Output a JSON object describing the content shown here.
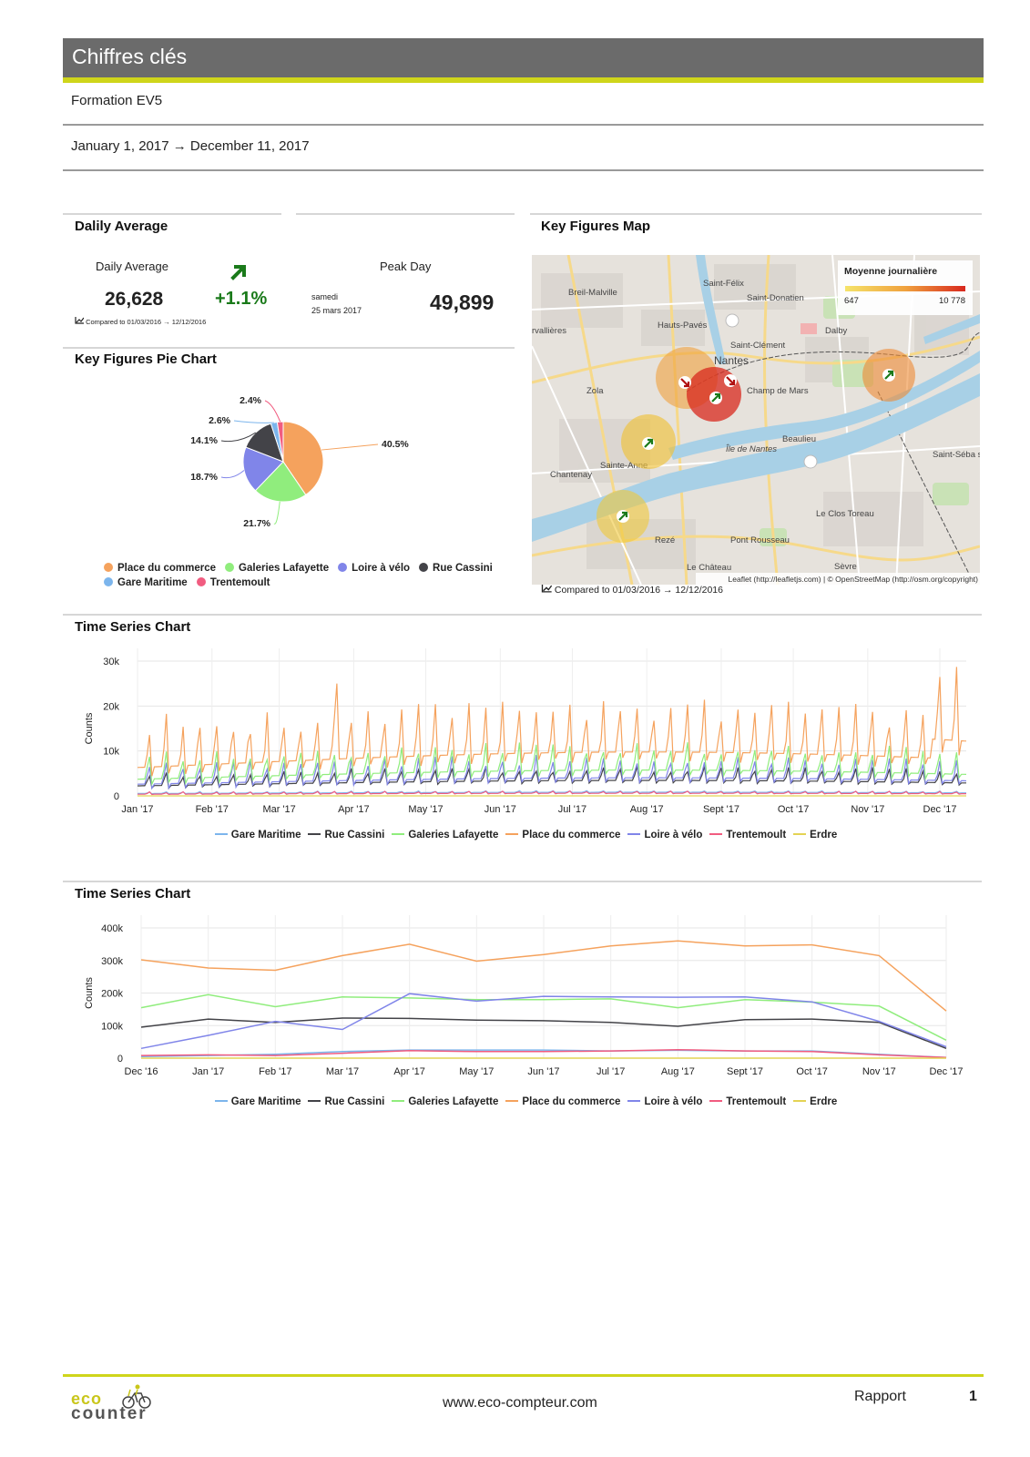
{
  "header": {
    "title": "Chiffres clés",
    "site": "Formation EV5",
    "date_range": "January 1, 2017 → December 11, 2017"
  },
  "daily_section": {
    "title": "Dalily Average"
  },
  "daily": {
    "label": "Daily Average",
    "value": "26,628",
    "change": "+1.1%",
    "compared": "Compared to  01/03/2016 → 12/12/2016"
  },
  "peak": {
    "label": "Peak Day",
    "day_name": "samedi",
    "date": "25 mars 2017",
    "value": "49,899"
  },
  "map": {
    "title": "Key Figures Map",
    "legend_title": "Moyenne journalière",
    "legend_min": "647",
    "legend_max": "10 778",
    "attribution": "Leaflet (http://leafletjs.com) | © OpenStreetMap (http://osm.org/copyright)",
    "compared": "Compared to  01/03/2016 → 12/12/2016",
    "place_labels": [
      "Saint-Félix",
      "Breil-Malville",
      "Saint-Donatien",
      "Hauts-Pavés",
      "Dalby",
      "rvallières",
      "Saint-Clément",
      "Nantes",
      "Champ de Mars",
      "Zola",
      "Beaulieu",
      "Île de Nantes",
      "Sainte-Anne",
      "Chantenay",
      "Saint-Séba sur-Loi",
      "Le Clos Toreau",
      "Rezé",
      "Pont Rousseau",
      "Le Château",
      "Sèvre"
    ]
  },
  "colors": {
    "place_du_commerce": "#f5a25d",
    "galeries_lafayette": "#90ed7d",
    "loire_a_velo": "#8085e9",
    "rue_cassini": "#434348",
    "gare_maritime": "#7cb5ec",
    "trentemoult": "#f15c80",
    "erdre": "#e4d354",
    "accent": "#cfd51b",
    "up_arrow": "#1a7a1a"
  },
  "pie_section": {
    "title": "Key Figures Pie Chart"
  },
  "ts1_section": {
    "title": "Time Series Chart"
  },
  "ts2_section": {
    "title": "Time Series Chart"
  },
  "chart_data": [
    {
      "type": "pie",
      "title": "Key Figures Pie Chart",
      "slices": [
        {
          "name": "Place du commerce",
          "value": 40.5,
          "label": "40.5%"
        },
        {
          "name": "Galeries Lafayette",
          "value": 21.7,
          "label": "21.7%"
        },
        {
          "name": "Loire à vélo",
          "value": 18.7,
          "label": "18.7%"
        },
        {
          "name": "Rue Cassini",
          "value": 14.1,
          "label": "14.1%"
        },
        {
          "name": "Gare Maritime",
          "value": 2.6,
          "label": "2.6%"
        },
        {
          "name": "Trentemoult",
          "value": 2.4,
          "label": "2.4%"
        }
      ]
    },
    {
      "type": "line",
      "title": "Time Series Chart",
      "ylabel": "Counts",
      "ylim": [
        0,
        30000
      ],
      "y_ticks": [
        "0",
        "10k",
        "20k",
        "30k"
      ],
      "x_ticks": [
        "Jan '17",
        "Feb '17",
        "Mar '17",
        "Apr '17",
        "May '17",
        "Jun '17",
        "Jul '17",
        "Aug '17",
        "Sept '17",
        "Oct '17",
        "Nov '17",
        "Dec '17"
      ],
      "series": [
        {
          "name": "Gare Maritime",
          "approx_daily": "≈ 800, weekly cycle"
        },
        {
          "name": "Rue Cassini",
          "approx_daily": "≈ 3,500, weekly cycle"
        },
        {
          "name": "Galeries Lafayette",
          "approx_daily": "≈ 6,000, weekly cycle"
        },
        {
          "name": "Place du commerce",
          "approx_daily": "≈ 10,000, weekly peaks 15–25k"
        },
        {
          "name": "Loire à vélo",
          "approx_daily": "≈ 5,000, weekly cycle"
        },
        {
          "name": "Trentemoult",
          "approx_daily": "≈ 700, weekly cycle"
        },
        {
          "name": "Erdre",
          "approx_daily": "0"
        }
      ]
    },
    {
      "type": "line",
      "title": "Time Series Chart",
      "ylabel": "Counts",
      "ylim": [
        0,
        400000
      ],
      "y_ticks": [
        "0",
        "100k",
        "200k",
        "300k",
        "400k"
      ],
      "categories": [
        "Dec '16",
        "Jan '17",
        "Feb '17",
        "Mar '17",
        "Apr '17",
        "May '17",
        "Jun '17",
        "Jul '17",
        "Aug '17",
        "Sept '17",
        "Oct '17",
        "Nov '17",
        "Dec '17"
      ],
      "series": [
        {
          "name": "Gare Maritime",
          "values": [
            5000,
            8000,
            12000,
            20000,
            25000,
            25000,
            25000,
            22000,
            24000,
            22000,
            22000,
            12000,
            2000
          ]
        },
        {
          "name": "Rue Cassini",
          "values": [
            95000,
            120000,
            110000,
            123000,
            122000,
            117000,
            115000,
            110000,
            98000,
            118000,
            120000,
            110000,
            30000
          ]
        },
        {
          "name": "Galeries Lafayette",
          "values": [
            155000,
            195000,
            158000,
            188000,
            185000,
            180000,
            180000,
            182000,
            155000,
            180000,
            172000,
            160000,
            55000
          ]
        },
        {
          "name": "Place du commerce",
          "values": [
            302000,
            277000,
            270000,
            315000,
            350000,
            298000,
            318000,
            345000,
            360000,
            345000,
            348000,
            315000,
            145000
          ]
        },
        {
          "name": "Loire à vélo",
          "values": [
            30000,
            70000,
            113000,
            88000,
            198000,
            175000,
            190000,
            188000,
            187000,
            188000,
            173000,
            113000,
            35000
          ]
        },
        {
          "name": "Trentemoult",
          "values": [
            8000,
            10000,
            8000,
            15000,
            23000,
            20000,
            20000,
            22000,
            26000,
            22000,
            20000,
            10000,
            2000
          ]
        },
        {
          "name": "Erdre",
          "values": [
            0,
            0,
            0,
            0,
            0,
            0,
            0,
            0,
            0,
            0,
            0,
            0,
            0
          ]
        }
      ]
    }
  ],
  "footer": {
    "url": "www.eco-compteur.com",
    "report": "Rapport",
    "page": "1",
    "logo_top": "eco",
    "logo_bottom": "counter"
  }
}
